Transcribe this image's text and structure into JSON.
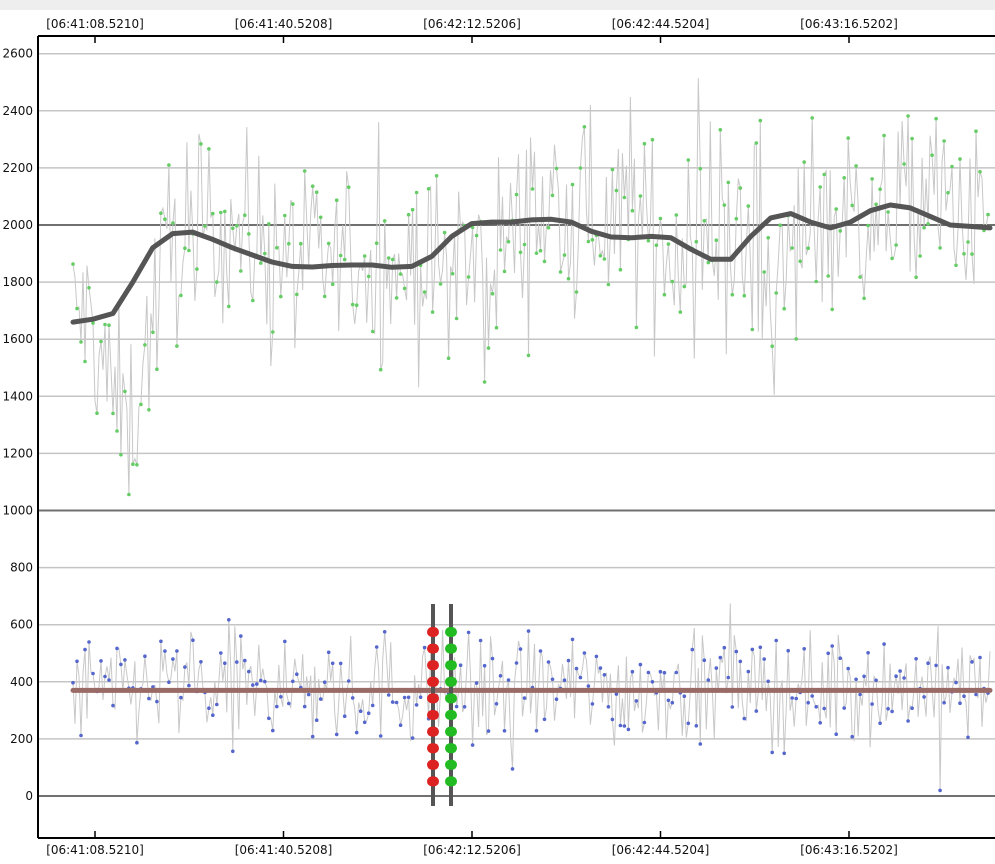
{
  "chart_data": {
    "type": "line",
    "title": "",
    "xlabel": "",
    "ylabel": "",
    "x_tick_labels": [
      "[06:41:08.5210]",
      "[06:41:40.5208]",
      "[06:42:12.5206]",
      "[06:42:44.5204]",
      "[06:43:16.5202]"
    ],
    "y_tick_labels": [
      "0",
      "200",
      "400",
      "600",
      "800",
      "1000",
      "1200",
      "1400",
      "1600",
      "1800",
      "2000",
      "2200",
      "2400",
      "2600"
    ],
    "ylim": [
      -150,
      2650
    ],
    "grid": true,
    "reference_lines": [
      0,
      1000,
      2000
    ],
    "series": [
      {
        "name": "",
        "color": "#66cc66",
        "raw_color": "#c8c8c8",
        "raw_mean": [
          1700,
          1650,
          1400,
          1300,
          1650,
          1950,
          1900,
          2000,
          2000,
          1950,
          1950,
          1900,
          1850,
          1850,
          1900,
          1850,
          1850,
          1850,
          1850,
          1850,
          1850,
          1800,
          1950,
          2000,
          2050,
          2000,
          2000,
          2050,
          2050,
          2000,
          1950,
          1900,
          1950,
          1950,
          1900,
          1850,
          1800,
          1900,
          2050,
          2050,
          2000,
          2000,
          2050,
          2100,
          2100,
          2050,
          2000,
          2000
        ],
        "trend": [
          1660,
          1670,
          1690,
          1800,
          1920,
          1970,
          1975,
          1950,
          1920,
          1895,
          1870,
          1855,
          1853,
          1858,
          1860,
          1860,
          1852,
          1855,
          1890,
          1960,
          2005,
          2010,
          2010,
          2018,
          2020,
          2010,
          1978,
          1958,
          1955,
          1960,
          1955,
          1915,
          1880,
          1880,
          1960,
          2025,
          2040,
          2010,
          1990,
          2010,
          2050,
          2070,
          2060,
          2030,
          2000,
          1995,
          1990
        ]
      },
      {
        "name": "",
        "color": "#5566cc",
        "raw_color": "#c8c8c8",
        "raw_mean": [
          380,
          370,
          360,
          380,
          380,
          390,
          380,
          370,
          380,
          390,
          380,
          370,
          380,
          390,
          360,
          380,
          390,
          360,
          380,
          370,
          380,
          380,
          370,
          390,
          380,
          370,
          380,
          390,
          360,
          380,
          390,
          380,
          370,
          380,
          390,
          380,
          370,
          380,
          360,
          380,
          390,
          380,
          370,
          390,
          380,
          370,
          380,
          370
        ],
        "trend": [
          370,
          370
        ]
      }
    ],
    "markers": [
      {
        "name": "",
        "color": "#dd2222"
      },
      {
        "name": "",
        "color": "#22bb22"
      }
    ]
  }
}
